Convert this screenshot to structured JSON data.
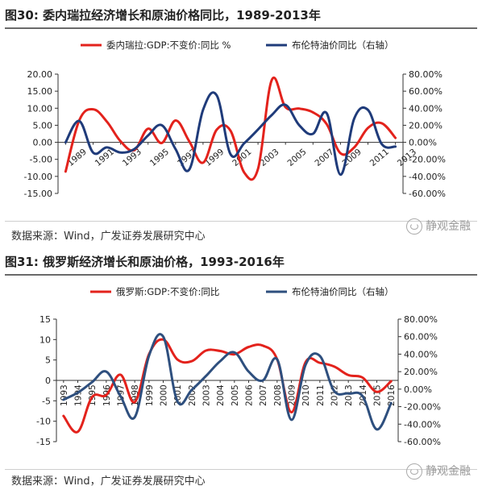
{
  "charts": [
    {
      "title": "图30: 委内瑞拉经济增长和原油价格同比，1989-2013年",
      "source": "数据来源：Wind，广发证券发展研究中心",
      "watermark": "静观金融"
    },
    {
      "title": "图31: 俄罗斯经济增长和原油价格，1993-2016年",
      "source": "数据来源：Wind，广发证券发展研究中心",
      "watermark": "静观金融"
    }
  ],
  "chart_data": [
    {
      "type": "line",
      "colors": {
        "gdp": "#e3221c",
        "oil": "#1f3b7a"
      },
      "legend_placement": "top",
      "x_ticks": [
        "1989",
        "1991",
        "1993",
        "1995",
        "1997",
        "1999",
        "2001",
        "2003",
        "2005",
        "2007",
        "2009",
        "2011",
        "2013"
      ],
      "x": [
        1989,
        1990,
        1991,
        1992,
        1993,
        1994,
        1995,
        1996,
        1997,
        1998,
        1999,
        2000,
        2001,
        2002,
        2003,
        2004,
        2005,
        2006,
        2007,
        2008,
        2009,
        2010,
        2011,
        2012,
        2013
      ],
      "left_axis": {
        "ylim": [
          -15,
          20
        ],
        "ticks": [
          "20.00",
          "15.00",
          "10.00",
          "5.00",
          "0.00",
          "-5.00",
          "-10.00",
          "-15.00"
        ],
        "tick_values": [
          20,
          15,
          10,
          5,
          0,
          -5,
          -10,
          -15
        ]
      },
      "right_axis": {
        "ylim": [
          -60,
          80
        ],
        "ticks": [
          "80.00%",
          "60.00%",
          "40.00%",
          "20.00%",
          "0.00%",
          "-20.00%",
          "-40.00%",
          "-60.00%"
        ],
        "tick_values": [
          80,
          60,
          40,
          20,
          0,
          -20,
          -40,
          -60
        ]
      },
      "series": [
        {
          "name": "委内瑞拉:GDP:不变价:同比 %",
          "axis": "left",
          "color_key": "gdp",
          "values": [
            -8.6,
            6.5,
            9.7,
            6.1,
            0.3,
            -2.3,
            4.0,
            -0.2,
            6.4,
            0.3,
            -6.0,
            3.7,
            3.4,
            -8.9,
            -7.8,
            18.3,
            10.3,
            9.9,
            8.8,
            5.3,
            -3.2,
            -1.5,
            4.2,
            5.6,
            1.3
          ]
        },
        {
          "name": "布伦特油价同比（右轴）",
          "axis": "right",
          "color_key": "oil",
          "values": [
            0,
            25,
            -12,
            -6,
            -12,
            -8,
            8,
            20,
            -8,
            -32,
            38,
            55,
            -14,
            -1,
            15,
            32,
            44,
            20,
            10,
            34,
            -38,
            28,
            38,
            -2,
            -5
          ]
        }
      ]
    },
    {
      "type": "line",
      "colors": {
        "gdp": "#e3221c",
        "oil": "#2e4f7e"
      },
      "legend_placement": "top",
      "x_ticks": [
        "1993",
        "1994",
        "1995",
        "1996",
        "1997",
        "1998",
        "1999",
        "2000",
        "2001",
        "2002",
        "2003",
        "2004",
        "2005",
        "2006",
        "2007",
        "2008",
        "2009",
        "2010",
        "2011",
        "2012",
        "2013",
        "2014",
        "2015",
        "2016"
      ],
      "x": [
        1993,
        1994,
        1995,
        1996,
        1997,
        1998,
        1999,
        2000,
        2001,
        2002,
        2003,
        2004,
        2005,
        2006,
        2007,
        2008,
        2009,
        2010,
        2011,
        2012,
        2013,
        2014,
        2015,
        2016
      ],
      "left_axis": {
        "ylim": [
          -15,
          15
        ],
        "ticks": [
          "15",
          "10",
          "5",
          "0",
          "-5",
          "-10",
          "-15"
        ],
        "tick_values": [
          15,
          10,
          5,
          0,
          -5,
          -10,
          -15
        ]
      },
      "right_axis": {
        "ylim": [
          -60,
          80
        ],
        "ticks": [
          "80.00%",
          "60.00%",
          "40.00%",
          "20.00%",
          "0.00%",
          "-20.00%",
          "-40.00%",
          "-60.00%"
        ],
        "tick_values": [
          80,
          60,
          40,
          20,
          0,
          -20,
          -40,
          -60
        ]
      },
      "series": [
        {
          "name": "俄罗斯:GDP:不变价:同比",
          "axis": "left",
          "color_key": "gdp",
          "values": [
            -8.7,
            -12.6,
            -4.1,
            -3.6,
            1.4,
            -5.3,
            6.4,
            10.0,
            5.1,
            4.7,
            7.3,
            7.2,
            6.4,
            8.2,
            8.5,
            5.2,
            -7.8,
            4.5,
            4.3,
            3.4,
            1.3,
            0.7,
            -2.8,
            -0.2
          ]
        },
        {
          "name": "布伦特油价同比（右轴）",
          "axis": "right",
          "color_key": "oil",
          "values": [
            -12,
            -4,
            8,
            20,
            -8,
            -32,
            38,
            60,
            -14,
            -1,
            15,
            32,
            42,
            20,
            10,
            34,
            -35,
            28,
            38,
            -2,
            -5,
            -8,
            -46,
            -16
          ]
        }
      ]
    }
  ]
}
